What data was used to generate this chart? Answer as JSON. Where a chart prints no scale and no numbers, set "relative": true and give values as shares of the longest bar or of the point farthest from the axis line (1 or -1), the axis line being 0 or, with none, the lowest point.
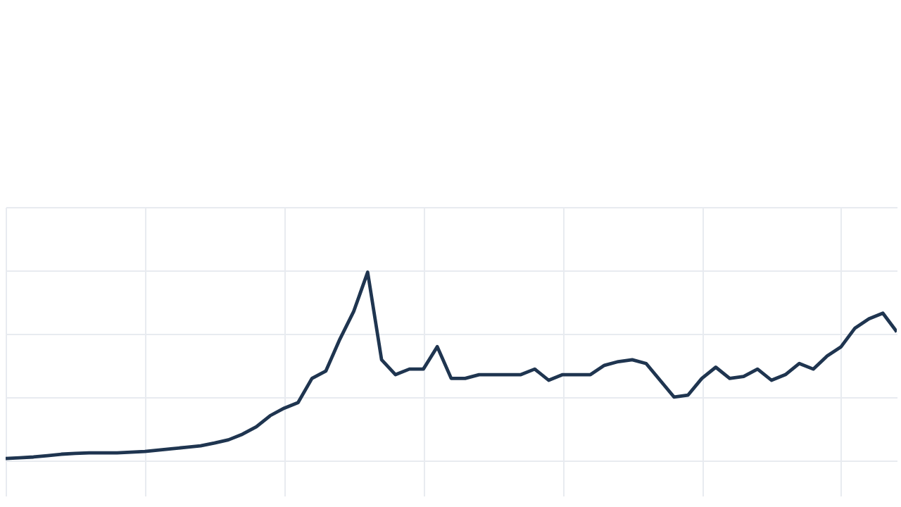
{
  "chart_data": {
    "type": "line",
    "relative": true,
    "grid": true,
    "categories": [
      null,
      null,
      null,
      null,
      null,
      null,
      null,
      null,
      null,
      null,
      null,
      null,
      null,
      null,
      null,
      null,
      null,
      null,
      null,
      null,
      null,
      null,
      null,
      null,
      null,
      null,
      null,
      null,
      null,
      null,
      null,
      null,
      null,
      null,
      null,
      null,
      null,
      null,
      null,
      null,
      null,
      null,
      null,
      null,
      null,
      null,
      null,
      null,
      null,
      null,
      null,
      null,
      null,
      null,
      null,
      null,
      null,
      null,
      null,
      null,
      null,
      null,
      null,
      null,
      null
    ],
    "series": [
      {
        "color": "#1f3550",
        "values": [
          0,
          0.004,
          0.008,
          0.015,
          0.023,
          0.027,
          0.03,
          0.03,
          0.03,
          0.034,
          0.038,
          0.045,
          0.053,
          0.06,
          0.068,
          0.083,
          0.1,
          0.13,
          0.17,
          0.23,
          0.27,
          0.3,
          0.43,
          0.47,
          0.64,
          0.79,
          1,
          0.53,
          0.45,
          0.48,
          0.48,
          0.6,
          0.43,
          0.43,
          0.45,
          0.45,
          0.45,
          0.45,
          0.48,
          0.42,
          0.45,
          0.45,
          0.45,
          0.5,
          0.52,
          0.53,
          0.51,
          0.42,
          0.33,
          0.34,
          0.43,
          0.49,
          0.43,
          0.44,
          0.48,
          0.42,
          0.45,
          0.51,
          0.48,
          0.55,
          0.6,
          0.7,
          0.75,
          0.78,
          0.68
        ]
      }
    ]
  }
}
